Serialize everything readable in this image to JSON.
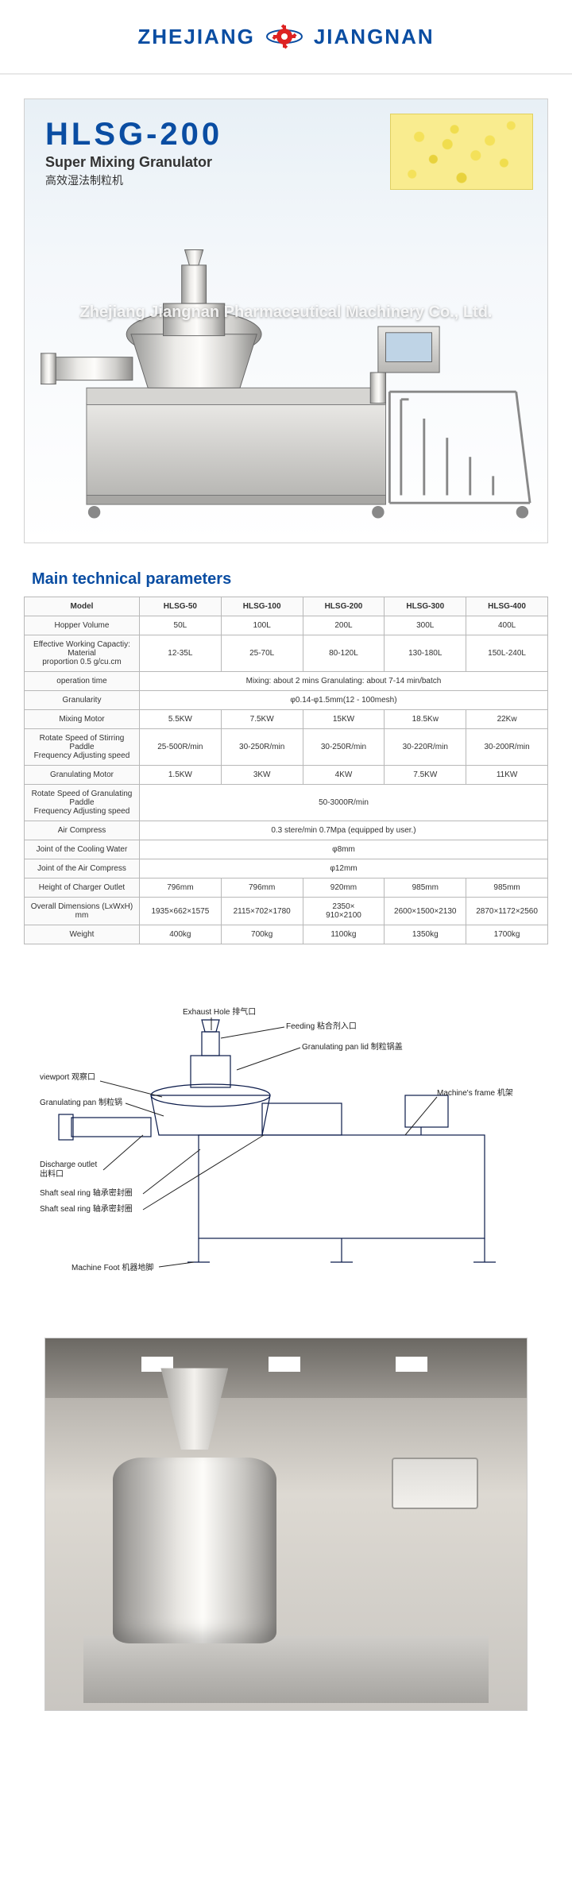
{
  "brand_left": "ZHEJIANG",
  "brand_right": "JIANGNAN",
  "hero": {
    "model": "HLSG-200",
    "subtitle_en": "Super Mixing Granulator",
    "subtitle_cn": "高效湿法制粒机",
    "watermark": "Zhejiang Jiangnan Pharmaceutical Machinery Co., Ltd."
  },
  "section_title": "Main technical parameters",
  "table": {
    "head": [
      "Model",
      "HLSG-50",
      "HLSG-100",
      "HLSG-200",
      "HLSG-300",
      "HLSG-400"
    ],
    "rows": [
      {
        "label": "Hopper Volume",
        "cells": [
          "50L",
          "100L",
          "200L",
          "300L",
          "400L"
        ]
      },
      {
        "label": "Effective Working Capactiy:\nMaterial\nproportion 0.5 g/cu.cm",
        "cells": [
          "12-35L",
          "25-70L",
          "80-120L",
          "130-180L",
          "150L-240L"
        ]
      },
      {
        "label": "operation time",
        "span": "Mixing: about 2 mins   Granulating: about 7-14 min/batch"
      },
      {
        "label": "Granularity",
        "span": "φ0.14-φ1.5mm(12 - 100mesh)"
      },
      {
        "label": "Mixing Motor",
        "cells": [
          "5.5KW",
          "7.5KW",
          "15KW",
          "18.5Kw",
          "22Kw"
        ]
      },
      {
        "label": "Rotate Speed of Stirring Paddle\nFrequency Adjusting speed",
        "cells": [
          "25-500R/min",
          "30-250R/min",
          "30-250R/min",
          "30-220R/min",
          "30-200R/min"
        ]
      },
      {
        "label": "Granulating Motor",
        "cells": [
          "1.5KW",
          "3KW",
          "4KW",
          "7.5KW",
          "11KW"
        ]
      },
      {
        "label": "Rotate Speed of Granulating Paddle\nFrequency Adjusting speed",
        "span": "50-3000R/min"
      },
      {
        "label": "Air Compress",
        "span": "0.3 stere/min 0.7Mpa (equipped by user.)"
      },
      {
        "label": "Joint of the Cooling Water",
        "span": "φ8mm"
      },
      {
        "label": "Joint of the Air Compress",
        "span": "φ12mm"
      },
      {
        "label": "Height of Charger Outlet",
        "cells": [
          "796mm",
          "796mm",
          "920mm",
          "985mm",
          "985mm"
        ]
      },
      {
        "label": "Overall Dimensions  (LxWxH) mm",
        "cells": [
          "1935×662×1575",
          "2115×702×1780",
          "2350×\n910×2100",
          "2600×1500×2130",
          "2870×1172×2560"
        ]
      },
      {
        "label": "Weight",
        "cells": [
          "400kg",
          "700kg",
          "1100kg",
          "1350kg",
          "1700kg"
        ]
      }
    ]
  },
  "diagram_labels": {
    "exhaust": "Exhaust Hole 排气口",
    "feeding": "Feeding 粘合剂入口",
    "panlid": "Granulating pan lid 制粒锅盖",
    "viewport": "viewport 观察口",
    "pan": "Granulating pan 制粒锅",
    "frame": "Machine's frame 机架",
    "discharge": "Discharge outlet\n出料口",
    "seal1": "Shaft seal ring 轴承密封圈",
    "seal2": "Shaft seal ring 轴承密封圈",
    "foot": "Machine Foot 机器地脚"
  },
  "colors": {
    "brand": "#0a4da2",
    "border": "#b8b8b8",
    "hero_bg_top": "#e8f0f6",
    "granule": "#f4e15a"
  }
}
